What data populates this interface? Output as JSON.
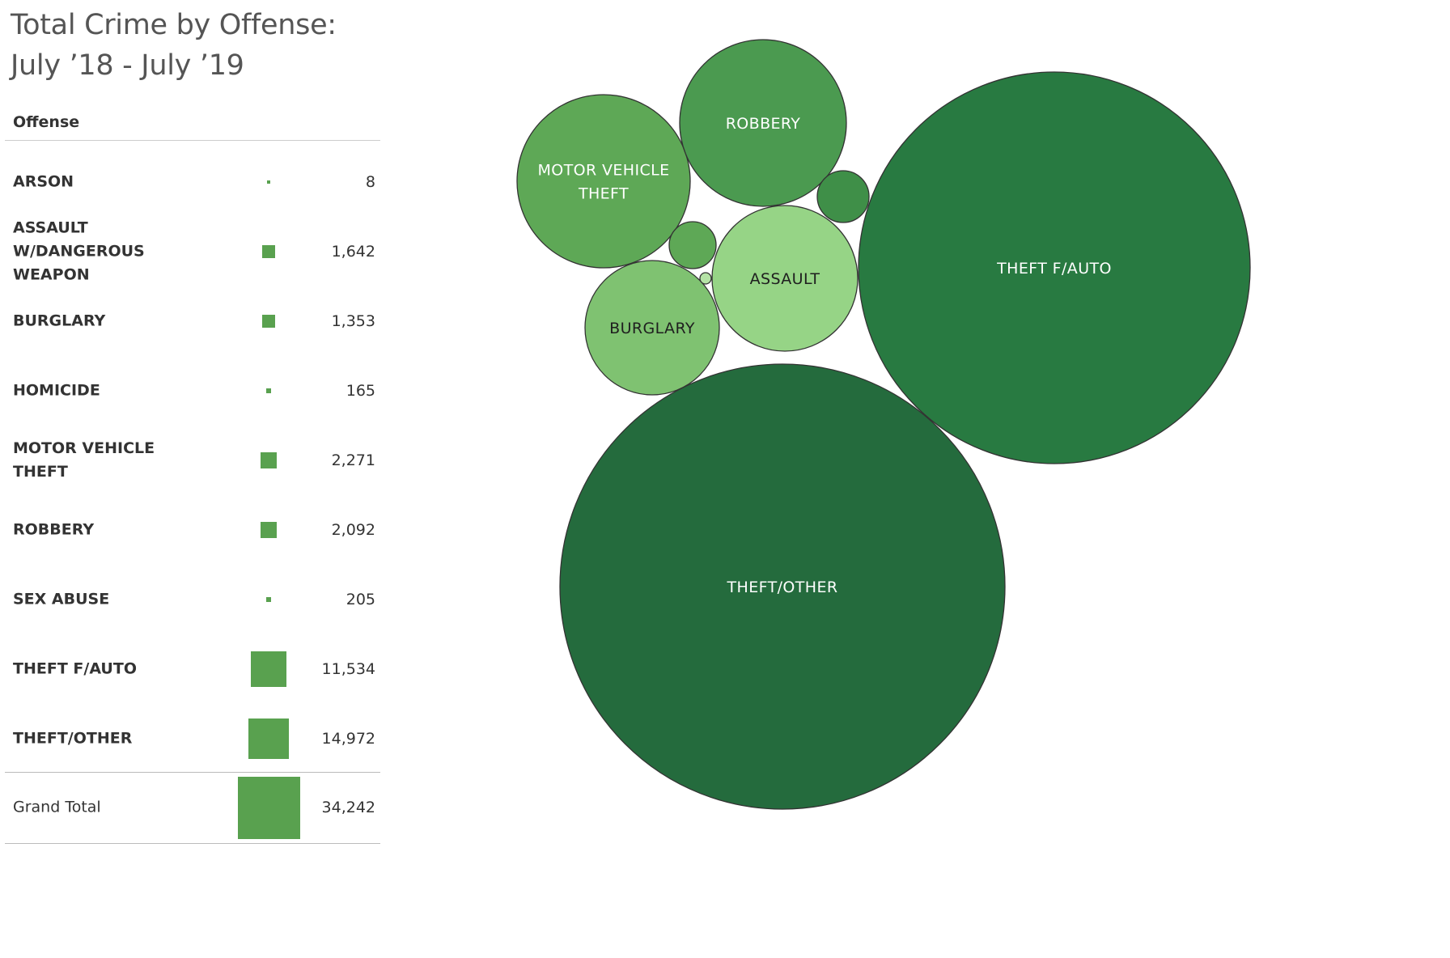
{
  "title": {
    "line1": "Total Crime by Offense:",
    "line2": "July ’18 - July ’19"
  },
  "chart_data": {
    "type": "table",
    "column_header": "Offense",
    "rows": [
      {
        "offense": "ARSON",
        "label_lines": [
          "ARSON"
        ],
        "value": 8,
        "display": "8"
      },
      {
        "offense": "ASSAULT W/DANGEROUS WEAPON",
        "label_lines": [
          "ASSAULT",
          "W/DANGEROUS",
          "WEAPON"
        ],
        "value": 1642,
        "display": "1,642"
      },
      {
        "offense": "BURGLARY",
        "label_lines": [
          "BURGLARY"
        ],
        "value": 1353,
        "display": "1,353"
      },
      {
        "offense": "HOMICIDE",
        "label_lines": [
          "HOMICIDE"
        ],
        "value": 165,
        "display": "165"
      },
      {
        "offense": "MOTOR VEHICLE THEFT",
        "label_lines": [
          "MOTOR VEHICLE",
          "THEFT"
        ],
        "value": 2271,
        "display": "2,271"
      },
      {
        "offense": "ROBBERY",
        "label_lines": [
          "ROBBERY"
        ],
        "value": 2092,
        "display": "2,092"
      },
      {
        "offense": "SEX ABUSE",
        "label_lines": [
          "SEX ABUSE"
        ],
        "value": 205,
        "display": "205"
      },
      {
        "offense": "THEFT F/AUTO",
        "label_lines": [
          "THEFT F/AUTO"
        ],
        "value": 11534,
        "display": "11,534"
      },
      {
        "offense": "THEFT/OTHER",
        "label_lines": [
          "THEFT/OTHER"
        ],
        "value": 14972,
        "display": "14,972"
      }
    ],
    "grand_total": {
      "label": "Grand Total",
      "value": 34242,
      "display": "34,242"
    },
    "mark_color": "#59a14f"
  },
  "bubble_chart": {
    "type": "packed-bubble",
    "bubbles": [
      {
        "offense": "THEFT/OTHER",
        "value": 14972,
        "label_lines": [
          "THEFT/OTHER"
        ],
        "fill": "#246b3d",
        "text_color": "#ffffff"
      },
      {
        "offense": "THEFT F/AUTO",
        "value": 11534,
        "label_lines": [
          "THEFT F/AUTO"
        ],
        "fill": "#287a41",
        "text_color": "#ffffff"
      },
      {
        "offense": "MOTOR VEHICLE THEFT",
        "value": 2271,
        "label_lines": [
          "MOTOR VEHICLE",
          "THEFT"
        ],
        "fill": "#5ea856",
        "text_color": "#ffffff"
      },
      {
        "offense": "ROBBERY",
        "value": 2092,
        "label_lines": [
          "ROBBERY"
        ],
        "fill": "#4b9a50",
        "text_color": "#ffffff"
      },
      {
        "offense": "ASSAULT W/DANGEROUS WEAPON",
        "value": 1642,
        "label_lines": [
          "ASSAULT"
        ],
        "fill": "#96d486",
        "text_color": "#1f1f1f"
      },
      {
        "offense": "BURGLARY",
        "value": 1353,
        "label_lines": [
          "BURGLARY"
        ],
        "fill": "#7fc271",
        "text_color": "#1f1f1f"
      },
      {
        "offense": "SEX ABUSE",
        "value": 205,
        "label_lines": [],
        "fill": "#3f8f48",
        "text_color": "#ffffff"
      },
      {
        "offense": "HOMICIDE",
        "value": 165,
        "label_lines": [],
        "fill": "#5ea856",
        "text_color": "#ffffff"
      },
      {
        "offense": "ARSON",
        "value": 8,
        "label_lines": [],
        "fill": "#b5e3a6",
        "text_color": "#1f1f1f"
      }
    ]
  }
}
